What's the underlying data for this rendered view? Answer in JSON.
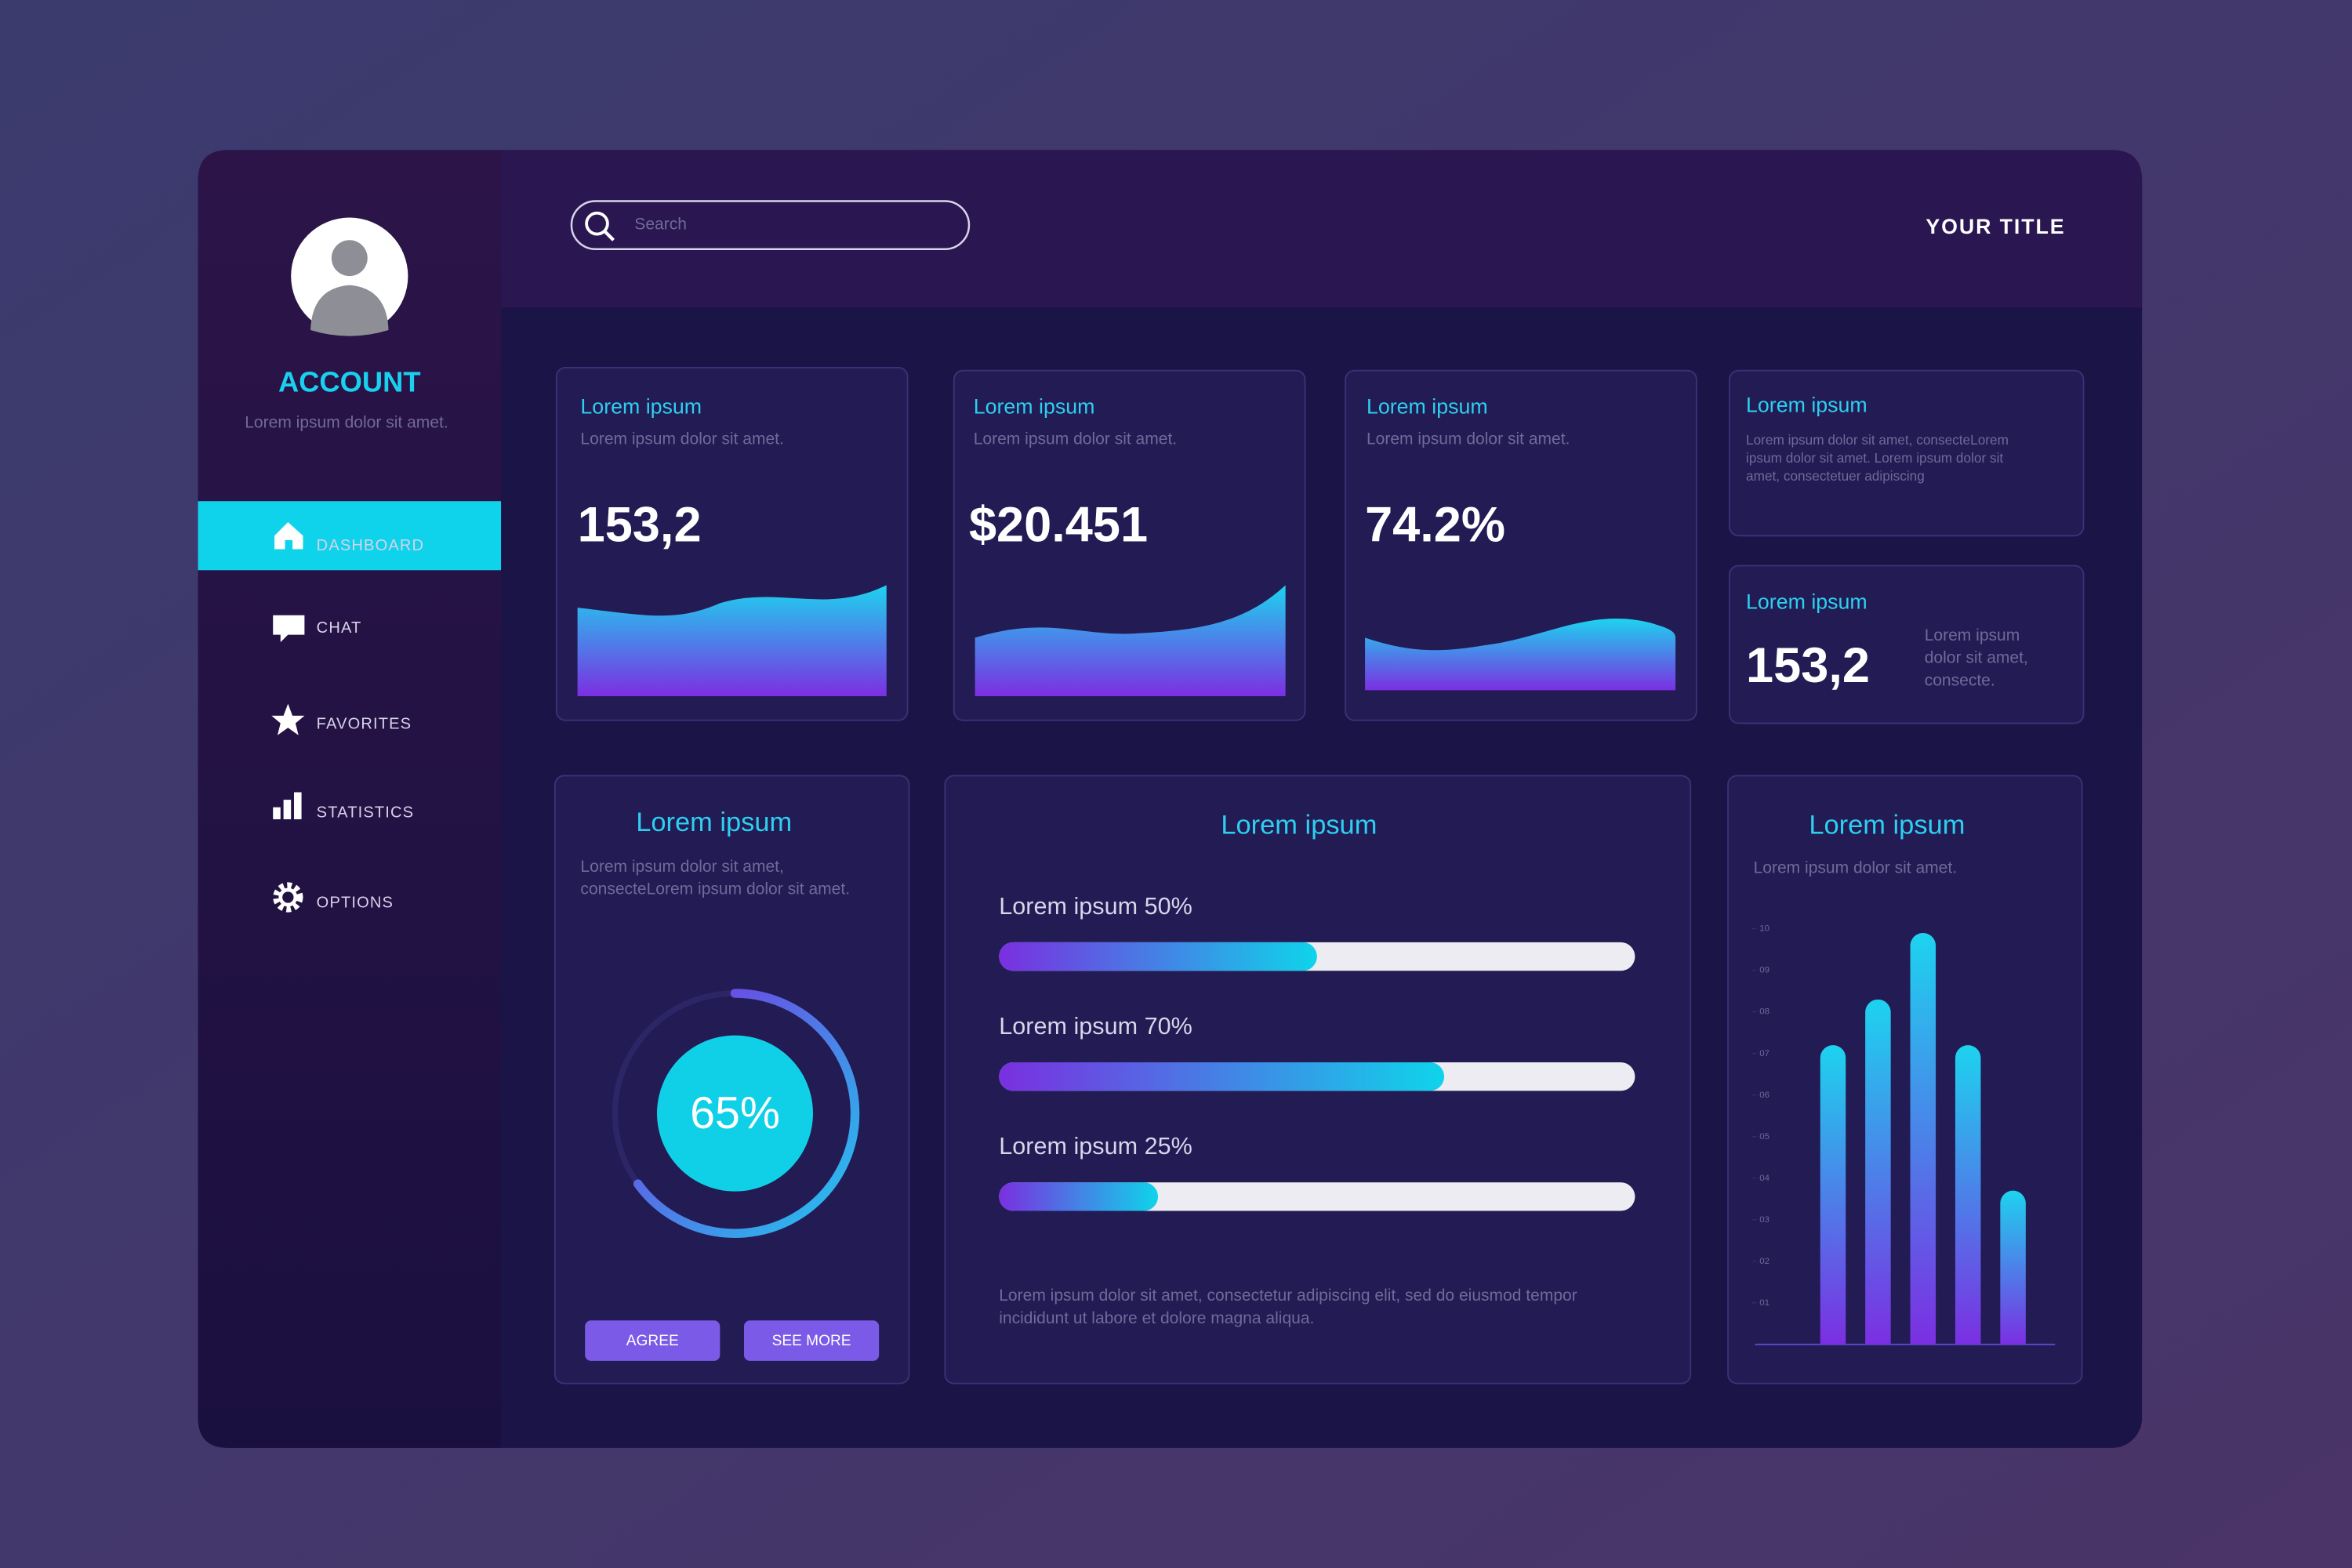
{
  "sidebar": {
    "account_title": "ACCOUNT",
    "account_subtitle": "Lorem ipsum dolor sit amet.",
    "nav": [
      "DASHBOARD",
      "CHAT",
      "FAVORITES",
      "STATISTICS",
      "OPTIONS"
    ]
  },
  "header": {
    "search_placeholder": "Search",
    "title": "YOUR TITLE"
  },
  "stat_cards": [
    {
      "title": "Lorem ipsum",
      "subtitle": "Lorem ipsum dolor sit amet.",
      "value": "153,2"
    },
    {
      "title": "Lorem ipsum",
      "subtitle": "Lorem ipsum dolor sit amet.",
      "value": "$20.451"
    },
    {
      "title": "Lorem ipsum",
      "subtitle": "Lorem ipsum dolor sit amet.",
      "value": "74.2%"
    }
  ],
  "info_card": {
    "title": "Lorem ipsum",
    "text_lines": [
      "Lorem ipsum dolor sit amet, consecteLorem",
      "ipsum dolor sit amet. Lorem ipsum dolor sit",
      "amet, consectetuer adipiscing"
    ]
  },
  "mini_card": {
    "title": "Lorem ipsum",
    "value": "153,2",
    "text_lines": [
      "Lorem ipsum",
      "dolor sit amet,",
      "consecte."
    ]
  },
  "donut_card": {
    "title": "Lorem ipsum",
    "text_lines": [
      "Lorem ipsum dolor sit amet,",
      "consecteLorem ipsum dolor sit amet."
    ],
    "value": 65,
    "label": "65%",
    "buttons": [
      "AGREE",
      "SEE MORE"
    ]
  },
  "progress_card": {
    "title": "Lorem ipsum",
    "items": [
      {
        "label": "Lorem ipsum 50%",
        "value": 50
      },
      {
        "label": "Lorem ipsum 70%",
        "value": 70
      },
      {
        "label": "Lorem ipsum 25%",
        "value": 25
      }
    ],
    "footer_lines": [
      "Lorem ipsum dolor sit amet, consectetur adipiscing elit, sed do eiusmod tempor",
      "incididunt ut labore et dolore magna aliqua."
    ]
  },
  "bar_card": {
    "title": "Lorem ipsum",
    "subtitle": "Lorem ipsum dolor sit amet.",
    "ylim": [
      0,
      10
    ],
    "yticks": [
      {
        "value": 1,
        "label": "01"
      },
      {
        "value": 2,
        "label": "02"
      },
      {
        "value": 3,
        "label": "03"
      },
      {
        "value": 4,
        "label": "04"
      },
      {
        "value": 5,
        "label": "05"
      },
      {
        "value": 6,
        "label": "06"
      },
      {
        "value": 7,
        "label": "07"
      },
      {
        "value": 8,
        "label": "08"
      },
      {
        "value": 9,
        "label": "09"
      },
      {
        "value": 10,
        "label": "10"
      }
    ],
    "values": [
      7.2,
      8.3,
      9.9,
      7.2,
      3.7
    ]
  }
}
